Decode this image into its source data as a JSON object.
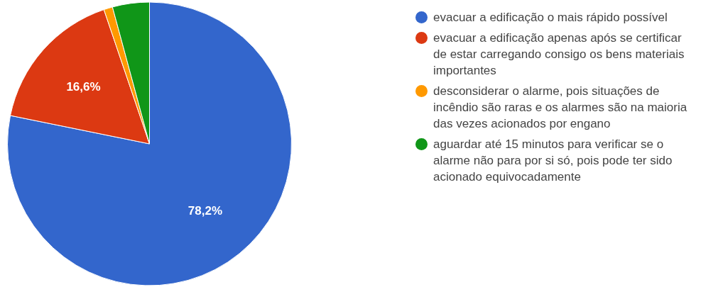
{
  "chart_data": {
    "type": "pie",
    "categories": [
      "evacuar a edificação o mais rápido possível",
      "evacuar a edificação apenas após se certificar de estar carregando consigo os bens materiais importantes",
      "desconsiderar o alarme, pois situações de incêndio são raras e os alarmes são na maioria das vezes acionados por engano",
      "aguardar até 15 minutos para verificar se o alarme não para por si só, pois pode ter sido acionado equivocadamente"
    ],
    "values": [
      78.2,
      16.6,
      1.0,
      4.2
    ],
    "value_labels": [
      "78,2%",
      "16,6%",
      null,
      null
    ],
    "colors": [
      "#3366cc",
      "#dc3912",
      "#ff9900",
      "#109618"
    ],
    "legend": "right"
  }
}
